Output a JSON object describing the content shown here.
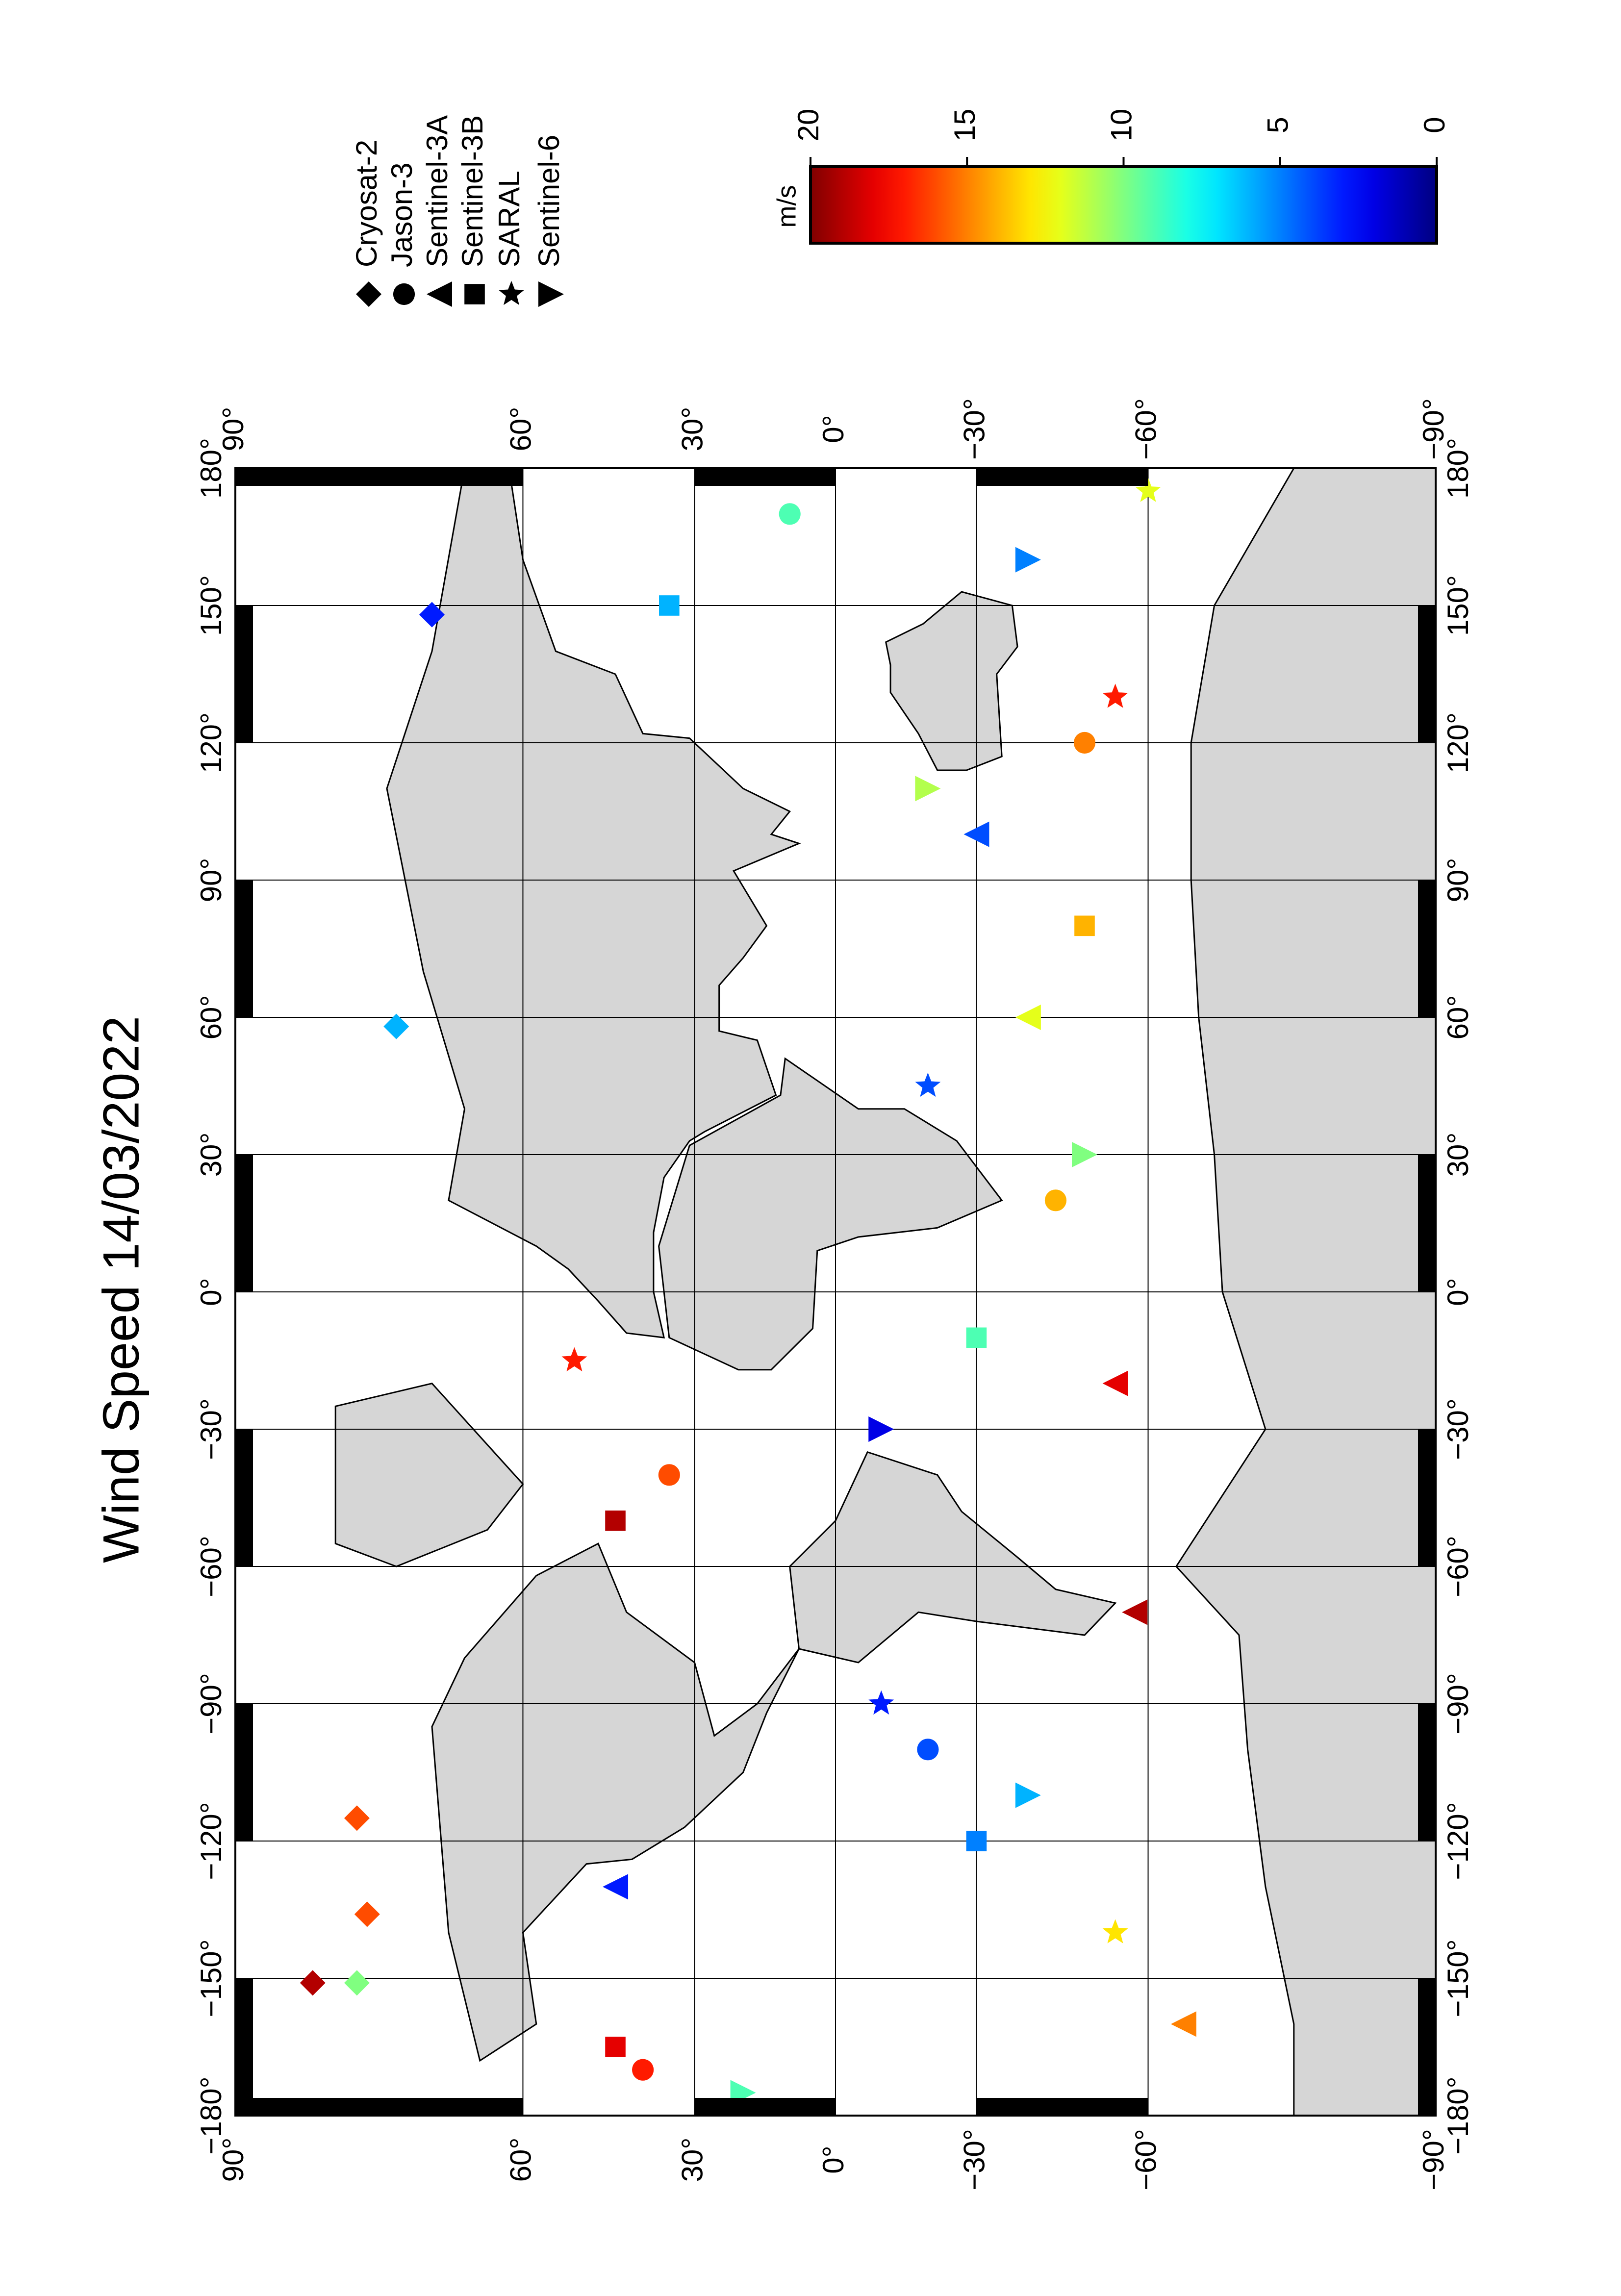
{
  "chart_data": {
    "type": "map",
    "title": "Wind Speed 14/03/2022",
    "projection": "miller",
    "xlim": [
      -180,
      180
    ],
    "ylim": [
      -90,
      90
    ],
    "xticks": [
      {
        "value": 180,
        "label": "180°"
      },
      {
        "value": 150,
        "label": "150°"
      },
      {
        "value": 120,
        "label": "120°"
      },
      {
        "value": 90,
        "label": "90°"
      },
      {
        "value": 60,
        "label": "60°"
      },
      {
        "value": 30,
        "label": "30°"
      },
      {
        "value": 0,
        "label": "0°"
      },
      {
        "value": -30,
        "label": "−30°"
      },
      {
        "value": -60,
        "label": "−60°"
      },
      {
        "value": -90,
        "label": "−90°"
      },
      {
        "value": -120,
        "label": "−120°"
      },
      {
        "value": -150,
        "label": "−150°"
      },
      {
        "value": -180,
        "label": "−180°"
      }
    ],
    "yticks": [
      {
        "value": 90,
        "label": "90°"
      },
      {
        "value": 60,
        "label": "60°"
      },
      {
        "value": 30,
        "label": "30°"
      },
      {
        "value": 0,
        "label": "0°"
      },
      {
        "value": -30,
        "label": "−30°"
      },
      {
        "value": -60,
        "label": "−60°"
      },
      {
        "value": -90,
        "label": "−90°"
      }
    ],
    "grid": true,
    "colormap": "jet",
    "colorbar": {
      "label": "m/s",
      "lim": [
        0,
        20
      ],
      "ticks": [
        20,
        15,
        10,
        5,
        0
      ]
    },
    "series": [
      {
        "name": "Cryosat-2",
        "marker": "diamond",
        "lon": [
          -151,
          -151,
          -136,
          -115,
          148,
          58
        ],
        "lat": [
          84,
          80,
          79,
          80,
          72,
          76
        ],
        "values": [
          19,
          10,
          16,
          16,
          3,
          6
        ]
      },
      {
        "name": "Jason-3",
        "marker": "circle",
        "lon": [
          -170,
          -100,
          -40,
          20,
          120,
          170
        ],
        "lat": [
          40,
          -20,
          35,
          -45,
          -50,
          10
        ],
        "values": [
          17,
          4,
          16,
          14,
          15,
          9
        ]
      },
      {
        "name": "Sentinel-3A",
        "marker": "triangle-left",
        "lon": [
          -160,
          -130,
          -20,
          60,
          100,
          -70
        ],
        "lat": [
          -65,
          45,
          -55,
          -40,
          -30,
          -58
        ],
        "values": [
          15,
          3,
          18,
          12,
          4,
          19
        ]
      },
      {
        "name": "Sentinel-3B",
        "marker": "square",
        "lon": [
          -165,
          -120,
          -50,
          -10,
          80,
          150
        ],
        "lat": [
          45,
          -30,
          45,
          -30,
          -50,
          35
        ],
        "values": [
          18,
          5,
          19,
          9,
          14,
          6
        ]
      },
      {
        "name": "SARAL",
        "marker": "star",
        "lon": [
          -140,
          -90,
          -15,
          45,
          130,
          175
        ],
        "lat": [
          -55,
          -10,
          52,
          -20,
          -55,
          -60
        ],
        "values": [
          13,
          3,
          17,
          4,
          17,
          12
        ]
      },
      {
        "name": "Sentinel-6",
        "marker": "triangle-right",
        "lon": [
          -175,
          -110,
          -30,
          30,
          110,
          160
        ],
        "lat": [
          20,
          -40,
          -10,
          -50,
          -20,
          -40
        ],
        "values": [
          9,
          6,
          2,
          10,
          11,
          5
        ]
      }
    ]
  }
}
